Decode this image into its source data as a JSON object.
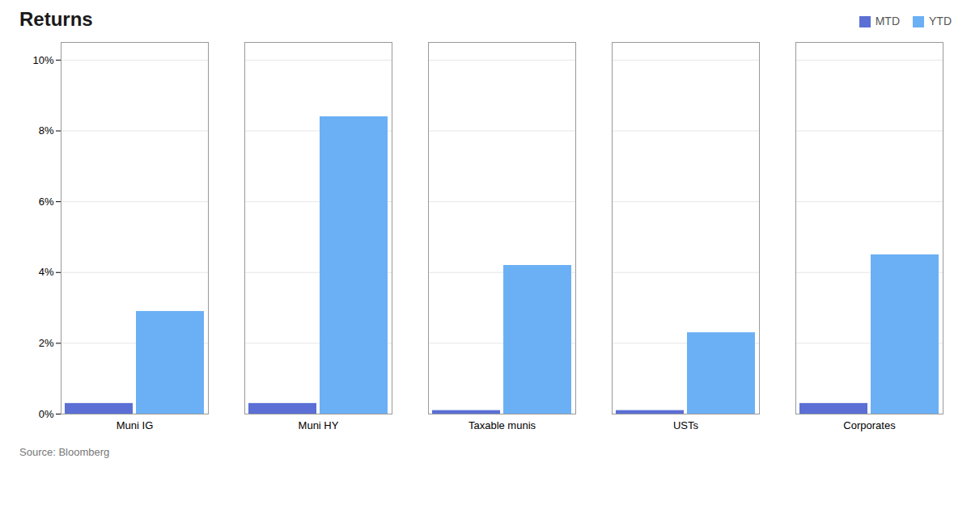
{
  "chart_data": {
    "type": "bar",
    "title": "Returns",
    "categories": [
      "Muni IG",
      "Muni HY",
      "Taxable munis",
      "USTs",
      "Corporates"
    ],
    "series": [
      {
        "name": "MTD",
        "color": "#5b6fd4",
        "values": [
          0.003,
          0.003,
          0.001,
          0.001,
          0.003
        ]
      },
      {
        "name": "YTD",
        "color": "#6bb0f5",
        "values": [
          0.029,
          0.084,
          0.042,
          0.023,
          0.045
        ]
      }
    ],
    "ylim": [
      0,
      0.105
    ],
    "yticks": [
      {
        "value": 0,
        "label": "0%"
      },
      {
        "value": 0.02,
        "label": "2%"
      },
      {
        "value": 0.04,
        "label": "4%"
      },
      {
        "value": 0.06,
        "label": "6%"
      },
      {
        "value": 0.08,
        "label": "8%"
      },
      {
        "value": 0.1,
        "label": "10%"
      }
    ],
    "grid": true,
    "legend": "upper right",
    "caption": "Source: Bloomberg"
  }
}
